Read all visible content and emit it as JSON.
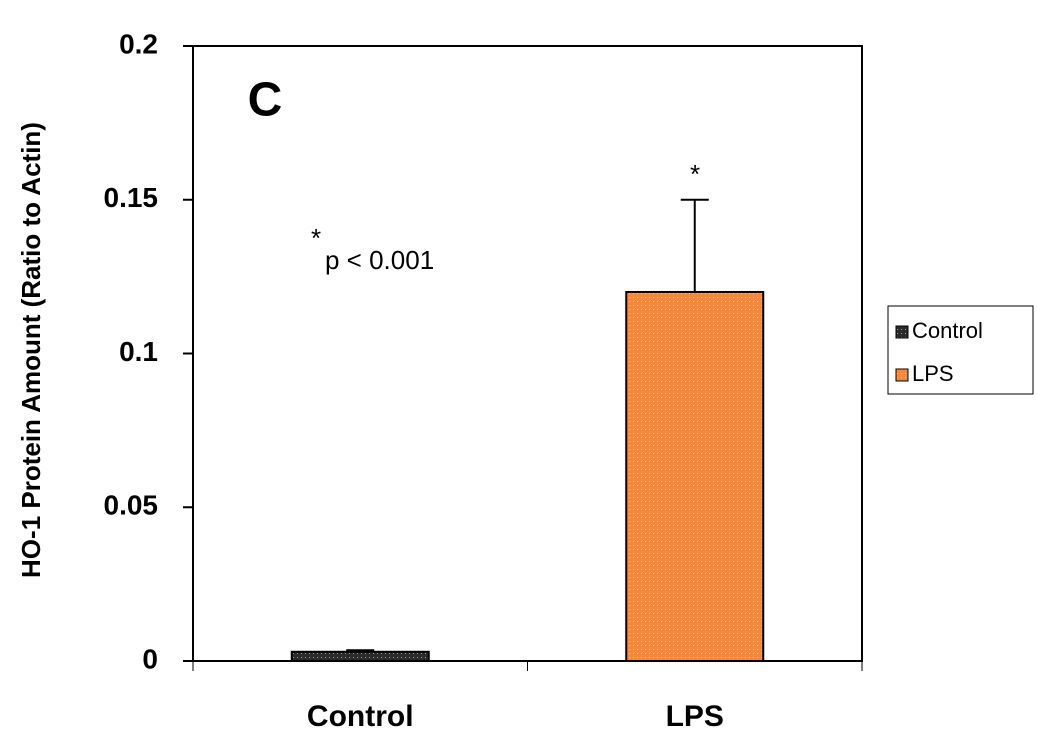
{
  "chart_data": {
    "type": "bar",
    "y_label": "HO-1 Protein Amount (Ratio to Actin)",
    "categories": [
      "Control",
      "LPS"
    ],
    "series": [
      {
        "name": "Control",
        "color": "#2b2b2b",
        "values": [
          0.003,
          null
        ],
        "errors": [
          0.0005,
          null
        ]
      },
      {
        "name": "LPS",
        "color": "#f5883a",
        "values": [
          null,
          0.12
        ],
        "errors": [
          null,
          0.03
        ]
      }
    ],
    "ylim": [
      0,
      0.2
    ],
    "yticks": [
      0,
      0.05,
      0.1,
      0.15,
      0.2
    ],
    "annotations": [
      "C",
      "*",
      "p < 0.001",
      "*"
    ],
    "legend": "right"
  }
}
